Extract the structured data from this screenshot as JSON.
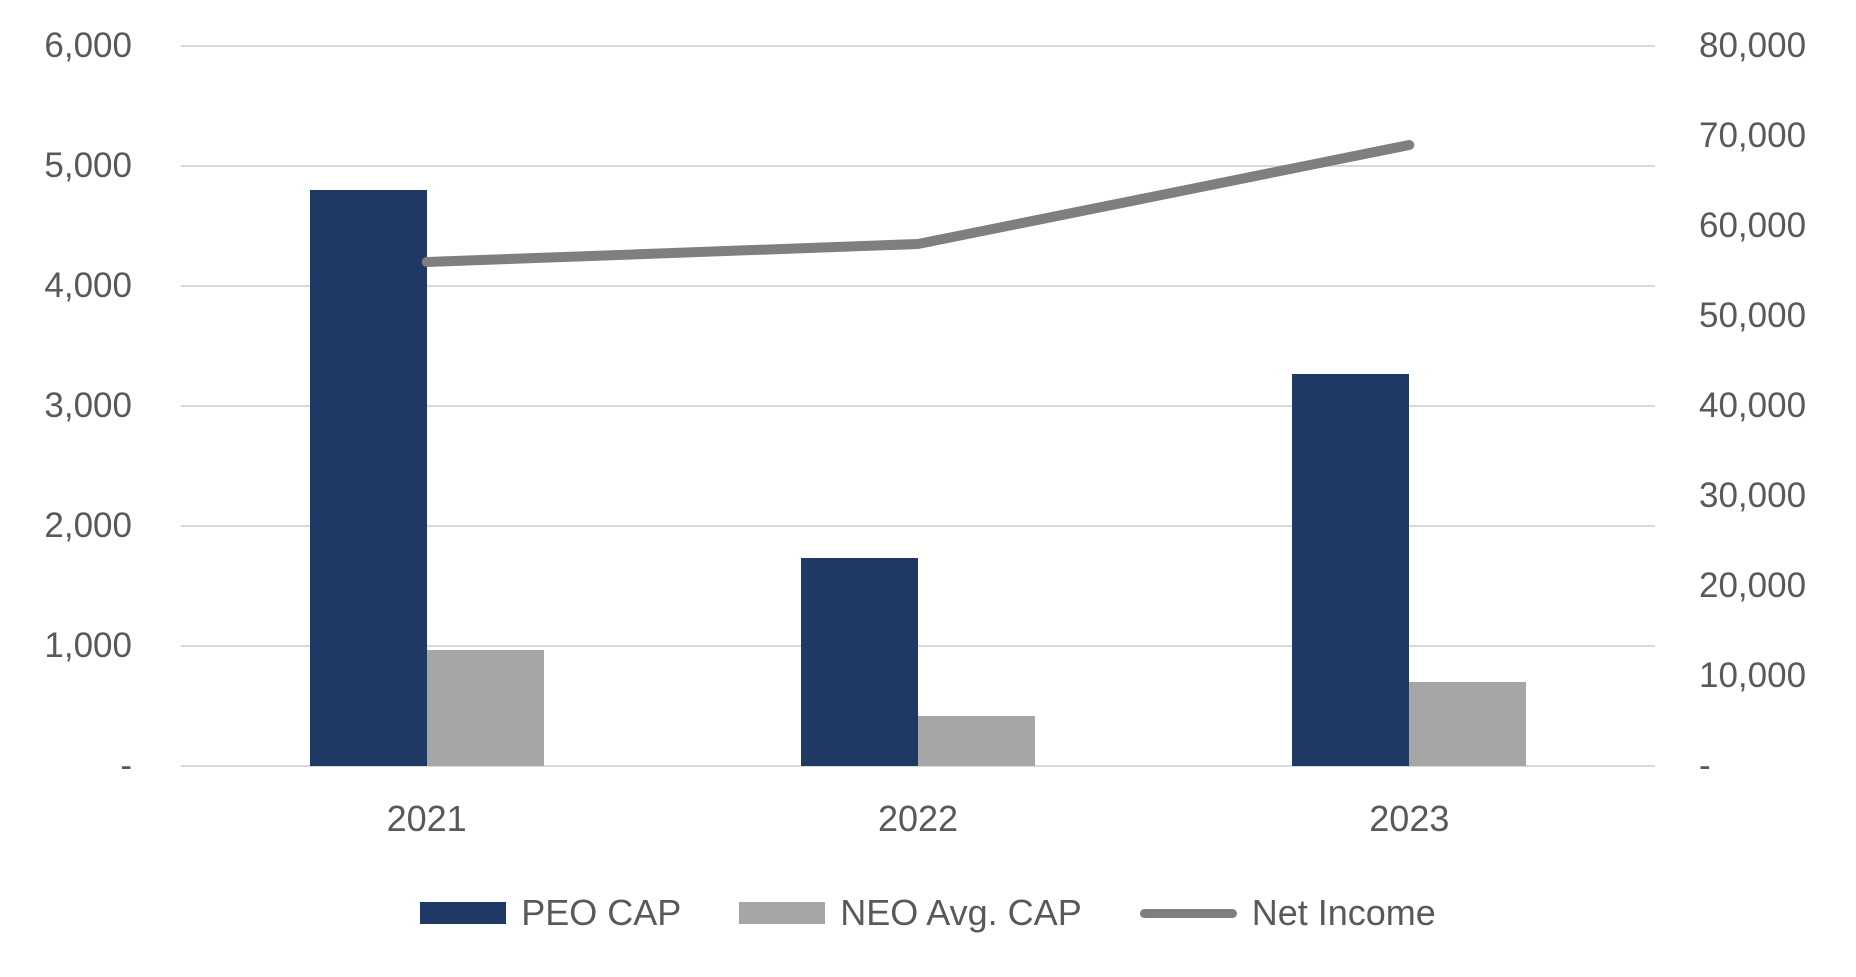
{
  "chart_data": {
    "type": "combo-bar-line",
    "title": "",
    "categories": [
      "2021",
      "2022",
      "2023"
    ],
    "series": [
      {
        "name": "PEO CAP",
        "type": "bar",
        "axis": "left",
        "color": "#1F3864",
        "values": [
          4800,
          1730,
          3270
        ]
      },
      {
        "name": "NEO Avg. CAP",
        "type": "bar",
        "axis": "left",
        "color": "#A6A6A6",
        "values": [
          970,
          420,
          700
        ]
      },
      {
        "name": "Net Income",
        "type": "line",
        "axis": "right",
        "color": "#7F7F7F",
        "values": [
          56000,
          58000,
          69000
        ]
      }
    ],
    "left_axis": {
      "min": 0,
      "max": 6000,
      "step": 1000,
      "tick_labels": [
        "-",
        "1,000",
        "2,000",
        "3,000",
        "4,000",
        "5,000",
        "6,000"
      ]
    },
    "right_axis": {
      "min": 0,
      "max": 80000,
      "step": 10000,
      "tick_labels": [
        "-",
        "10,000",
        "20,000",
        "30,000",
        "40,000",
        "50,000",
        "60,000",
        "70,000",
        "80,000"
      ]
    },
    "legend": {
      "position": "bottom",
      "entries": [
        "PEO CAP",
        "NEO Avg. CAP",
        "Net Income"
      ]
    },
    "grid": true,
    "colors": {
      "background": "#FFFFFF",
      "tick_text": "#595959",
      "gridline": "#D9D9D9"
    }
  }
}
